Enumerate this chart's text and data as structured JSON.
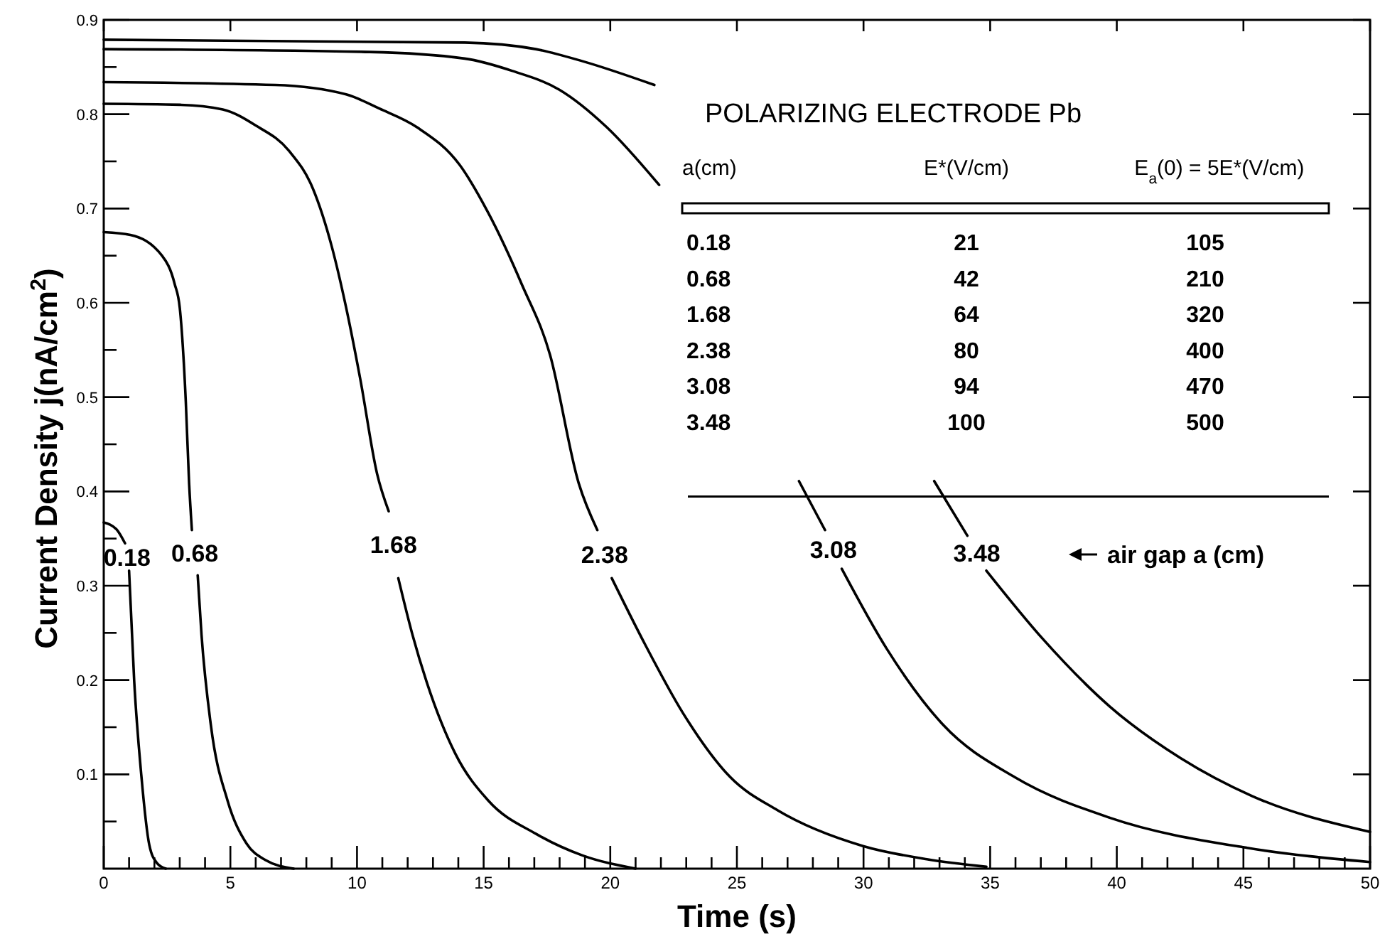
{
  "chart_data": {
    "type": "line",
    "xlabel": "Time (s)",
    "ylabel": "Current Density j(nA/cm$^{2}$)",
    "xlim": [
      0,
      50
    ],
    "ylim": [
      0,
      0.9
    ],
    "xticks": [
      0,
      {
        "value": 1,
        "label": null
      },
      {
        "value": 2,
        "label": null
      },
      {
        "value": 3,
        "label": null
      },
      {
        "value": 4,
        "label": null
      },
      5,
      {
        "value": 6,
        "label": null
      },
      {
        "value": 7,
        "label": null
      },
      {
        "value": 8,
        "label": null
      },
      {
        "value": 9,
        "label": null
      },
      10,
      {
        "value": 11,
        "label": null
      },
      {
        "value": 12,
        "label": null
      },
      {
        "value": 13,
        "label": null
      },
      {
        "value": 14,
        "label": null
      },
      15,
      {
        "value": 16,
        "label": null
      },
      {
        "value": 17,
        "label": null
      },
      {
        "value": 18,
        "label": null
      },
      {
        "value": 19,
        "label": null
      },
      20,
      {
        "value": 21,
        "label": null
      },
      {
        "value": 22,
        "label": null
      },
      {
        "value": 23,
        "label": null
      },
      {
        "value": 24,
        "label": null
      },
      25,
      {
        "value": 26,
        "label": null
      },
      {
        "value": 27,
        "label": null
      },
      {
        "value": 28,
        "label": null
      },
      {
        "value": 29,
        "label": null
      },
      30,
      {
        "value": 31,
        "label": null
      },
      {
        "value": 32,
        "label": null
      },
      {
        "value": 33,
        "label": null
      },
      {
        "value": 34,
        "label": null
      },
      35,
      {
        "value": 36,
        "label": null
      },
      {
        "value": 37,
        "label": null
      },
      {
        "value": 38,
        "label": null
      },
      {
        "value": 39,
        "label": null
      },
      40,
      {
        "value": 41,
        "label": null
      },
      {
        "value": 42,
        "label": null
      },
      {
        "value": 43,
        "label": null
      },
      {
        "value": 44,
        "label": null
      },
      45,
      {
        "value": 46,
        "label": null
      },
      {
        "value": 47,
        "label": null
      },
      {
        "value": 48,
        "label": null
      },
      {
        "value": 49,
        "label": null
      },
      50
    ],
    "yticks": [
      {
        "value": 0.05,
        "label": null
      },
      0.1,
      {
        "value": 0.15,
        "label": null
      },
      0.2,
      {
        "value": 0.25,
        "label": null
      },
      0.3,
      {
        "value": 0.35,
        "label": null
      },
      0.4,
      {
        "value": 0.45,
        "label": null
      },
      0.5,
      {
        "value": 0.55,
        "label": null
      },
      0.6,
      {
        "value": 0.65,
        "label": null
      },
      0.7,
      {
        "value": 0.75,
        "label": null
      },
      0.8,
      {
        "value": 0.85,
        "label": null
      },
      0.9
    ],
    "marker": "none",
    "line_style": "solid",
    "grid": false,
    "series": [
      {
        "name": "0.18",
        "color": "#000000",
        "x": [
          0,
          0.5,
          0.84,
          0.92,
          1.0,
          1.2,
          1.48,
          1.8,
          2.1,
          2.45
        ],
        "values": [
          0.367,
          0.36,
          0.345,
          null,
          0.316,
          0.2,
          0.1,
          0.025,
          0.006,
          0
        ]
      },
      {
        "name": "0.68",
        "color": "#000000",
        "x": [
          0,
          1.05,
          2.3,
          2.8,
          3.0,
          3.24,
          3.37,
          3.48,
          3.6,
          3.71,
          3.86,
          4.23,
          4.89,
          5.63,
          6.39,
          7.5
        ],
        "values": [
          0.675,
          0.672,
          0.65,
          0.62,
          0.595,
          0.495,
          0.409,
          0.359,
          null,
          0.311,
          0.248,
          0.152,
          0.072,
          0.027,
          0.009,
          0
        ]
      },
      {
        "name": "1.68",
        "color": "#000000",
        "x": [
          0,
          3,
          4.7,
          6.0,
          7.32,
          8.26,
          9.0,
          9.57,
          10.13,
          10.79,
          11.25,
          11.45,
          11.63,
          12.19,
          12.75,
          13.88,
          15.19,
          17.06,
          18.9,
          21.0
        ],
        "values": [
          0.811,
          0.81,
          0.805,
          0.788,
          0.761,
          0.721,
          0.66,
          0.595,
          0.519,
          0.419,
          0.379,
          null,
          0.308,
          0.248,
          0.198,
          0.122,
          0.072,
          0.037,
          0.014,
          0
        ]
      },
      {
        "name": "2.38",
        "color": "#000000",
        "x": [
          0,
          6.76,
          9.57,
          10.88,
          12.38,
          14.06,
          15.19,
          16.5,
          17.62,
          18.75,
          19.49,
          19.8,
          20.06,
          21.37,
          22.87,
          24.74,
          26.6,
          29.98,
          32.5,
          34.85
        ],
        "values": [
          0.834,
          0.831,
          0.821,
          0.806,
          0.786,
          0.746,
          0.695,
          0.62,
          0.545,
          0.409,
          0.359,
          null,
          0.308,
          0.238,
          0.165,
          0.097,
          0.062,
          0.024,
          0.01,
          0.002
        ]
      },
      {
        "name": "3.08",
        "color": "#000000",
        "x": [
          0,
          10.5,
          14.25,
          16.12,
          17.99,
          19.87,
          21.93,
          24.5,
          27.45,
          28.48,
          28.8,
          29.14,
          30.92,
          33.16,
          35.97,
          39.72,
          45.15,
          50
        ],
        "values": [
          0.869,
          0.866,
          0.859,
          0.846,
          0.826,
          0.786,
          0.725,
          null,
          0.411,
          0.359,
          null,
          0.318,
          0.233,
          0.152,
          0.097,
          0.054,
          0.022,
          0.007
        ]
      },
      {
        "name": "3.48",
        "color": "#000000",
        "x": [
          0,
          14.25,
          17.06,
          18.93,
          21.74,
          27,
          32.79,
          34.1,
          34.5,
          34.85,
          37.1,
          39.72,
          42.53,
          45.34,
          50
        ],
        "values": [
          0.879,
          0.876,
          0.869,
          0.856,
          0.831,
          null,
          0.411,
          0.353,
          null,
          0.316,
          0.243,
          0.172,
          0.117,
          0.077,
          0.039
        ]
      }
    ],
    "annotations": [
      "air gap a (cm)",
      "POLARIZING ELECTRODE Pb",
      "a(cm)",
      "E*(V/cm)",
      "E$_{a}$(0) = 5E*(V/cm)",
      "0.18",
      "21",
      "105",
      "0.68",
      "42",
      "210",
      "1.68",
      "64",
      "320",
      "2.38",
      "80",
      "400",
      "3.08",
      "94",
      "470",
      "3.48",
      "100",
      "500"
    ]
  }
}
